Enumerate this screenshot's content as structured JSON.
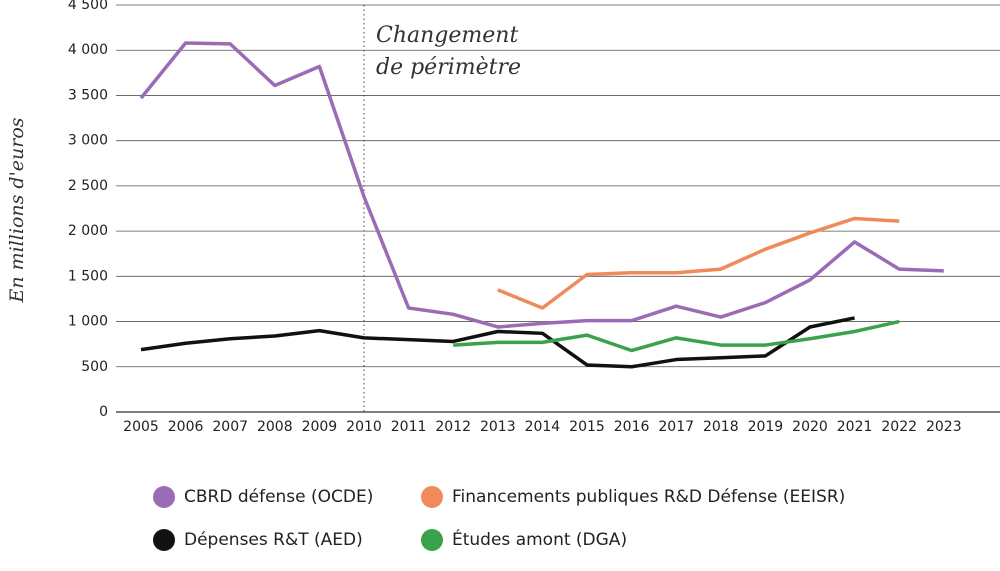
{
  "chart_data": {
    "type": "line",
    "y_label": "En millions d'euros",
    "categories": [
      "2005",
      "2006",
      "2007",
      "2008",
      "2009",
      "2010",
      "2011",
      "2012",
      "2013",
      "2014",
      "2015",
      "2016",
      "2017",
      "2018",
      "2019",
      "2020",
      "2021",
      "2022",
      "2023"
    ],
    "series": [
      {
        "name": "CBRD défense (OCDE)",
        "color": "#9b6bb5",
        "values": [
          3470,
          4080,
          4070,
          3610,
          3820,
          2380,
          1150,
          1080,
          940,
          980,
          1010,
          1010,
          1170,
          1050,
          1210,
          1460,
          1880,
          1580,
          1560
        ]
      },
      {
        "name": "Financements publiques R&D Défense (EEISR)",
        "color": "#f08a5a",
        "values": [
          null,
          null,
          null,
          null,
          null,
          null,
          null,
          null,
          1350,
          1150,
          1520,
          1540,
          1540,
          1580,
          1800,
          1980,
          2140,
          2110,
          null
        ]
      },
      {
        "name": "Dépenses R&T (AED)",
        "color": "#111111",
        "values": [
          690,
          760,
          810,
          840,
          900,
          820,
          800,
          780,
          890,
          870,
          520,
          500,
          580,
          600,
          620,
          940,
          1040,
          null,
          null
        ]
      },
      {
        "name": "Études amont (DGA)",
        "color": "#3aa24a",
        "values": [
          null,
          null,
          null,
          null,
          null,
          null,
          null,
          740,
          770,
          770,
          850,
          680,
          820,
          740,
          740,
          810,
          890,
          1000,
          null
        ]
      }
    ],
    "ylim": [
      0,
      4500
    ],
    "yticks": [
      0,
      500,
      {
        "value": 1000,
        "label": "1 000"
      },
      {
        "value": 1500,
        "label": "1 500"
      },
      {
        "value": 2000,
        "label": "2 000"
      },
      {
        "value": 2500,
        "label": "2 500"
      },
      {
        "value": 3000,
        "label": "3 000"
      },
      {
        "value": 3500,
        "label": "3 500"
      },
      {
        "value": 4000,
        "label": "4 000"
      },
      {
        "value": 4500,
        "label": "4 500"
      }
    ],
    "grid": true,
    "reference_line": {
      "x": "2010",
      "label": [
        "Changement",
        "de périmètre"
      ]
    }
  }
}
